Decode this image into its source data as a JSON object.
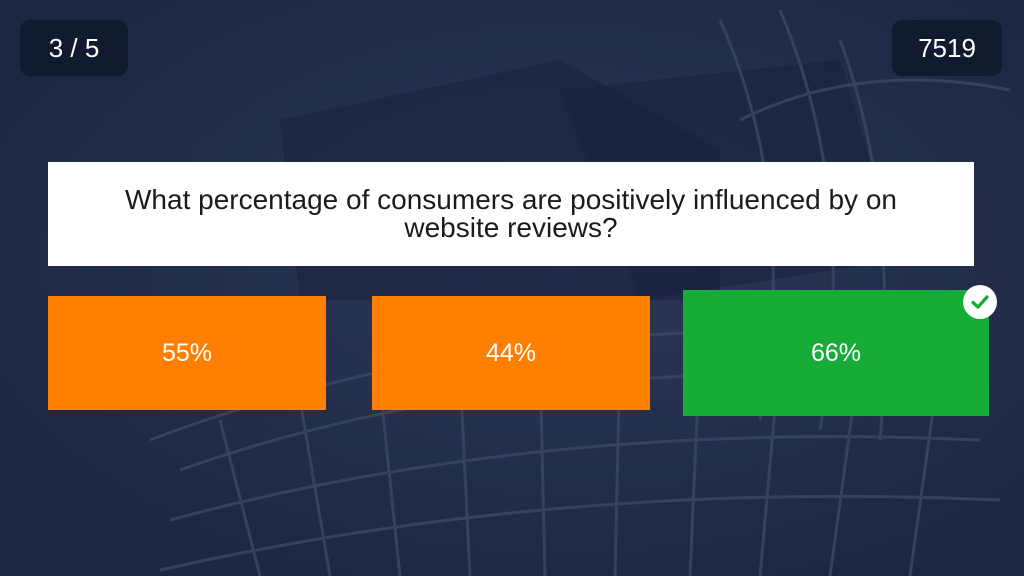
{
  "header": {
    "progress": "3 / 5",
    "score": "7519"
  },
  "question": {
    "text": "What percentage of consumers are positively influenced by on website reviews?"
  },
  "answers": [
    {
      "label": "55%",
      "state": "incorrect",
      "color": "#ff8000"
    },
    {
      "label": "44%",
      "state": "incorrect",
      "color": "#ff8000"
    },
    {
      "label": "66%",
      "state": "correct",
      "color": "#17ab38"
    }
  ],
  "correct_icon": "check-icon",
  "colors": {
    "background": "#202b47",
    "pill": "#111a2e"
  }
}
